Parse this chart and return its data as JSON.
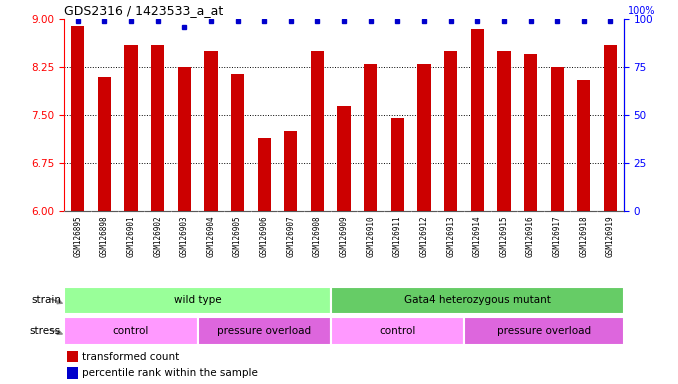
{
  "title": "GDS2316 / 1423533_a_at",
  "samples": [
    "GSM126895",
    "GSM126898",
    "GSM126901",
    "GSM126902",
    "GSM126903",
    "GSM126904",
    "GSM126905",
    "GSM126906",
    "GSM126907",
    "GSM126908",
    "GSM126909",
    "GSM126910",
    "GSM126911",
    "GSM126912",
    "GSM126913",
    "GSM126914",
    "GSM126915",
    "GSM126916",
    "GSM126917",
    "GSM126918",
    "GSM126919"
  ],
  "transformed_counts": [
    8.9,
    8.1,
    8.6,
    8.6,
    8.25,
    8.5,
    8.15,
    7.15,
    7.25,
    8.5,
    7.65,
    8.3,
    7.45,
    8.3,
    8.5,
    8.85,
    8.5,
    8.45,
    8.25,
    8.05,
    8.6
  ],
  "percentile_ranks": [
    99,
    99,
    99,
    99,
    96,
    99,
    99,
    99,
    99,
    99,
    99,
    99,
    99,
    99,
    99,
    99,
    99,
    99,
    99,
    99,
    99
  ],
  "ylim_left": [
    6,
    9
  ],
  "ylim_right": [
    0,
    100
  ],
  "yticks_left": [
    6,
    6.75,
    7.5,
    8.25,
    9
  ],
  "yticks_right": [
    0,
    25,
    50,
    75,
    100
  ],
  "bar_color": "#cc0000",
  "dot_color": "#0000cc",
  "strain_groups": [
    {
      "label": "wild type",
      "start": 0,
      "end": 10,
      "color": "#99ff99"
    },
    {
      "label": "Gata4 heterozygous mutant",
      "start": 10,
      "end": 21,
      "color": "#66cc66"
    }
  ],
  "stress_groups": [
    {
      "label": "control",
      "start": 0,
      "end": 5,
      "color": "#ff99ff"
    },
    {
      "label": "pressure overload",
      "start": 5,
      "end": 10,
      "color": "#dd66dd"
    },
    {
      "label": "control",
      "start": 10,
      "end": 15,
      "color": "#ff99ff"
    },
    {
      "label": "pressure overload",
      "start": 15,
      "end": 21,
      "color": "#dd66dd"
    }
  ],
  "legend_bar_label": "transformed count",
  "legend_dot_label": "percentile rank within the sample",
  "bar_width": 0.5,
  "tick_bg_color": "#d8d8d8",
  "xtick_fontsize": 5.5,
  "ytick_fontsize": 7.5,
  "title_fontsize": 9
}
